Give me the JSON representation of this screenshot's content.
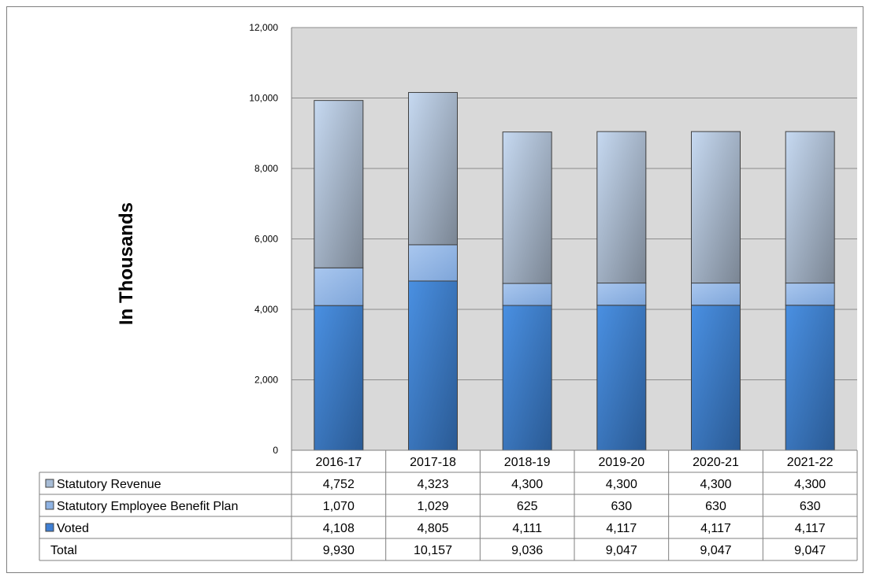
{
  "chart_data": {
    "type": "bar",
    "stacked": true,
    "categories": [
      "2016-17",
      "2017-18",
      "2018-19",
      "2019-20",
      "2020-21",
      "2021-22"
    ],
    "series": [
      {
        "name": "Voted",
        "values": [
          4108,
          4805,
          4111,
          4117,
          4117,
          4117
        ],
        "value_labels": [
          "4,108",
          "4,805",
          "4,111",
          "4,117",
          "4,117",
          "4,117"
        ],
        "color": "#3f7fd4"
      },
      {
        "name": "Statutory Employee Benefit Plan",
        "values": [
          1070,
          1029,
          625,
          630,
          630,
          630
        ],
        "value_labels": [
          "1,070",
          "1,029",
          "625",
          "630",
          "630",
          "630"
        ],
        "color": "#8fb3e3"
      },
      {
        "name": "Statutory Revenue",
        "values": [
          4752,
          4323,
          4300,
          4300,
          4300,
          4300
        ],
        "value_labels": [
          "4,752",
          "4,323",
          "4,300",
          "4,300",
          "4,300",
          "4,300"
        ],
        "color": "#a7bcd6"
      }
    ],
    "total": {
      "label": "Total",
      "value_labels": [
        "9,930",
        "10,157",
        "9,036",
        "9,047",
        "9,047",
        "9,047"
      ]
    },
    "ylabel": "In Thousands",
    "ylim": [
      0,
      12000
    ],
    "yticks": [
      0,
      2000,
      4000,
      6000,
      8000,
      10000,
      12000
    ],
    "ytick_labels": [
      "0",
      "2,000",
      "4,000",
      "6,000",
      "8,000",
      "10,000",
      "12,000"
    ],
    "grid": true,
    "legend": "data-table",
    "plot_background": "#d9d9d9"
  }
}
